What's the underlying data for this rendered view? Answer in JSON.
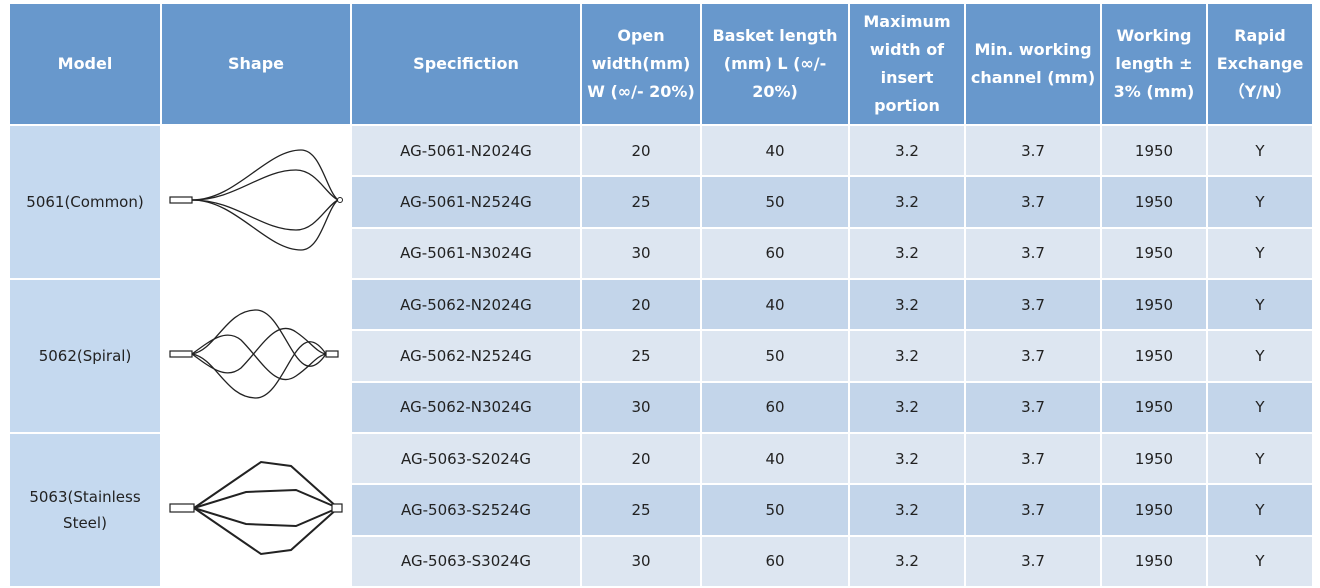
{
  "table": {
    "header": [
      "Model",
      "Shape",
      "Specifiction",
      "Open width(mm) W (∞/- 20%)",
      "Basket length (mm) L (∞/- 20%)",
      "Maximum width of insert portion",
      "Min. working channel (mm)",
      "Working length ± 3% (mm)",
      "Rapid Exchange （Y/N）"
    ],
    "groups": [
      {
        "model": "5061(Common)",
        "rows": [
          [
            "AG-5061-N2024G",
            20,
            40,
            3.2,
            3.7,
            1950,
            "Y"
          ],
          [
            "AG-5061-N2524G",
            25,
            50,
            3.2,
            3.7,
            1950,
            "Y"
          ],
          [
            "AG-5061-N3024G",
            30,
            60,
            3.2,
            3.7,
            1950,
            "Y"
          ]
        ]
      },
      {
        "model": "5062(Spiral)",
        "rows": [
          [
            "AG-5062-N2024G",
            20,
            40,
            3.2,
            3.7,
            1950,
            "Y"
          ],
          [
            "AG-5062-N2524G",
            25,
            50,
            3.2,
            3.7,
            1950,
            "Y"
          ],
          [
            "AG-5062-N3024G",
            30,
            60,
            3.2,
            3.7,
            1950,
            "Y"
          ]
        ]
      },
      {
        "model": "5063(Stainless Steel)",
        "rows": [
          [
            "AG-5063-S2024G",
            20,
            40,
            3.2,
            3.7,
            1950,
            "Y"
          ],
          [
            "AG-5063-S2524G",
            25,
            50,
            3.2,
            3.7,
            1950,
            "Y"
          ],
          [
            "AG-5063-S3024G",
            30,
            60,
            3.2,
            3.7,
            1950,
            "Y"
          ]
        ]
      }
    ]
  }
}
